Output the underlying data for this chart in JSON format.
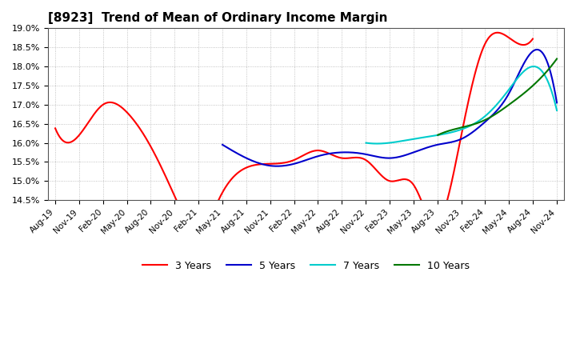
{
  "title": "[8923]  Trend of Mean of Ordinary Income Margin",
  "title_fontsize": 11,
  "ylim": [
    0.145,
    0.19
  ],
  "yticks": [
    0.145,
    0.15,
    0.155,
    0.16,
    0.165,
    0.17,
    0.175,
    0.18,
    0.185,
    0.19
  ],
  "background_color": "#ffffff",
  "grid_color": "#aaaaaa",
  "x_labels": [
    "Aug-19",
    "Nov-19",
    "Feb-20",
    "May-20",
    "Aug-20",
    "Nov-20",
    "Feb-21",
    "May-21",
    "Aug-21",
    "Nov-21",
    "Feb-22",
    "May-22",
    "Aug-22",
    "Nov-22",
    "Feb-23",
    "May-23",
    "Aug-23",
    "Nov-23",
    "Feb-24",
    "May-24",
    "Aug-24",
    "Nov-24"
  ],
  "legend": [
    "3 Years",
    "5 Years",
    "7 Years",
    "10 Years"
  ],
  "legend_colors": [
    "#ff0000",
    "#0000cc",
    "#00cccc",
    "#007700"
  ],
  "series_3y_xq": [
    0,
    1,
    2,
    3,
    4,
    5,
    6,
    7,
    8,
    9,
    10,
    11,
    12,
    13,
    14,
    15,
    16,
    17,
    18,
    19,
    20
  ],
  "series_3y_yq": [
    0.1638,
    0.162,
    0.17,
    0.168,
    0.159,
    0.146,
    0.137,
    0.147,
    0.1535,
    0.1545,
    0.1555,
    0.158,
    0.156,
    0.1555,
    0.15,
    0.149,
    0.139,
    0.162,
    0.186,
    0.1875,
    0.1873
  ],
  "series_5y_xq": [
    7,
    8,
    9,
    10,
    11,
    12,
    13,
    14,
    15,
    16,
    17,
    18,
    19,
    20,
    21
  ],
  "series_5y_yq": [
    0.1595,
    0.156,
    0.154,
    0.1545,
    0.1565,
    0.1575,
    0.157,
    0.156,
    0.1575,
    0.1595,
    0.161,
    0.1655,
    0.173,
    0.184,
    0.1705
  ],
  "series_7y_xq": [
    13,
    14,
    15,
    16,
    17,
    18,
    19,
    20,
    21
  ],
  "series_7y_yq": [
    0.16,
    0.16,
    0.161,
    0.162,
    0.1635,
    0.167,
    0.174,
    0.18,
    0.1685
  ],
  "series_10y_xq": [
    16,
    17,
    18,
    19,
    20,
    21
  ],
  "series_10y_yq": [
    0.162,
    0.164,
    0.166,
    0.17,
    0.175,
    0.182
  ]
}
